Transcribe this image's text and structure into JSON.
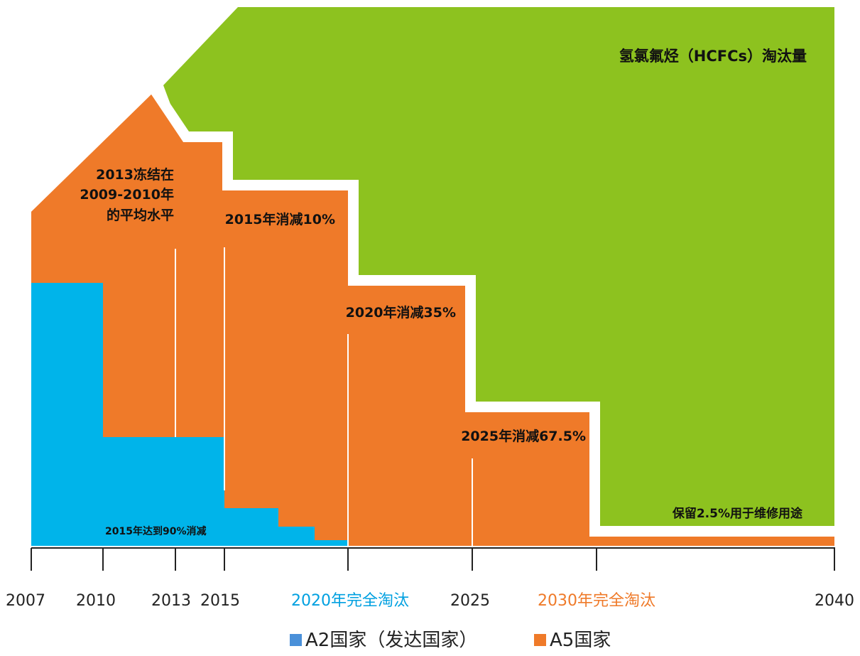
{
  "title": "氢氯氟烃（HCFCs）淘汰量",
  "annotations": {
    "freeze": [
      "2013冻结在",
      "2009-2010年",
      "的平均水平"
    ],
    "cut2015": "2015年消减10%",
    "cut2020": "2020年消减35%",
    "cut2025": "2025年消减67.5%",
    "service": "保留2.5%用于维修用途",
    "a2_2015": "2015年达到90%消减"
  },
  "axis_labels": [
    "2007",
    "2010",
    "2013",
    "2015",
    "2020年完全淘汰",
    "2025",
    "2030年完全淘汰",
    "2040"
  ],
  "legend": [
    "A2国家（发达国家）",
    "A5国家"
  ]
}
